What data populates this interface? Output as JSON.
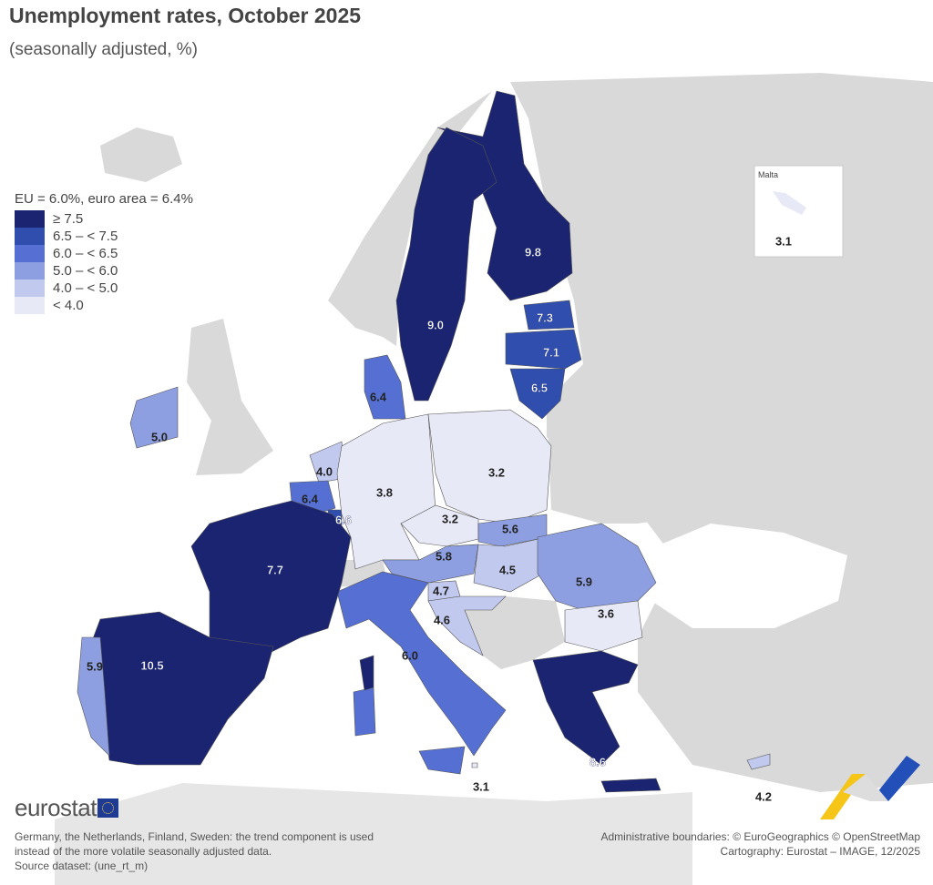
{
  "title": "Unemployment rates, October 2025",
  "subtitle": "(seasonally adjusted, %)",
  "legend": {
    "averages": "EU = 6.0%, euro area = 6.4%",
    "classes": [
      {
        "label": "≥ 7.5",
        "color": "#1b2470"
      },
      {
        "label": "6.5 – < 7.5",
        "color": "#2f4eae"
      },
      {
        "label": "6.0 – < 6.5",
        "color": "#5570d2"
      },
      {
        "label": "5.0 – < 6.0",
        "color": "#8d9fe0"
      },
      {
        "label": "4.0 – < 5.0",
        "color": "#c1c9ee"
      },
      {
        "label": "< 4.0",
        "color": "#e7e9f7"
      }
    ]
  },
  "colors": {
    "non_eu_land": "#d9d9d9",
    "sea": "#ffffff"
  },
  "chart_data": {
    "type": "choropleth",
    "title": "Unemployment rates, October 2025",
    "unit": "%",
    "countries": [
      {
        "name": "Finland",
        "value": 9.8
      },
      {
        "name": "Sweden",
        "value": 9.0
      },
      {
        "name": "Estonia",
        "value": 7.3
      },
      {
        "name": "Latvia",
        "value": 7.1
      },
      {
        "name": "Lithuania",
        "value": 6.5
      },
      {
        "name": "Denmark",
        "value": 6.4
      },
      {
        "name": "Ireland",
        "value": 5.0
      },
      {
        "name": "Netherlands",
        "value": 4.0
      },
      {
        "name": "Belgium",
        "value": 6.4
      },
      {
        "name": "Luxembourg",
        "value": 6.6
      },
      {
        "name": "Germany",
        "value": 3.8
      },
      {
        "name": "Poland",
        "value": 3.2
      },
      {
        "name": "Czechia",
        "value": 3.2
      },
      {
        "name": "Slovakia",
        "value": 5.6
      },
      {
        "name": "Austria",
        "value": 5.8
      },
      {
        "name": "Hungary",
        "value": 4.5
      },
      {
        "name": "Romania",
        "value": 5.9
      },
      {
        "name": "Slovenia",
        "value": 4.7
      },
      {
        "name": "Croatia",
        "value": 4.6
      },
      {
        "name": "Bulgaria",
        "value": 3.6
      },
      {
        "name": "Italy",
        "value": 6.0
      },
      {
        "name": "France",
        "value": 7.7
      },
      {
        "name": "Spain",
        "value": 10.5
      },
      {
        "name": "Portugal",
        "value": 5.9
      },
      {
        "name": "Greece",
        "value": 8.6
      },
      {
        "name": "Malta",
        "value": 3.1
      },
      {
        "name": "Cyprus",
        "value": 4.2
      }
    ]
  },
  "inset": {
    "label": "Malta",
    "value": "3.1"
  },
  "footer": {
    "logo": "eurostat",
    "note_lines": [
      "Germany, the Netherlands, Finland, Sweden: the trend component is used",
      "instead of the more volatile seasonally adjusted data.",
      "Source dataset: (une_rt_m)"
    ],
    "credit_lines": [
      "Administrative boundaries: © EuroGeographics © OpenStreetMap",
      "Cartography: Eurostat – IMAGE, 12/2025"
    ]
  }
}
